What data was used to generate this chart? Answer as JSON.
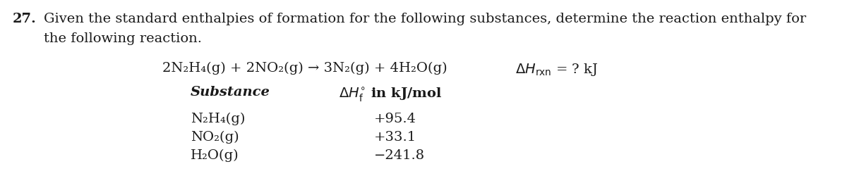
{
  "background_color": "#ffffff",
  "problem_number": "27.",
  "intro_text_line1": "Given the standard enthalpies of formation for the following substances, determine the reaction enthalpy for",
  "intro_text_line2": "the following reaction.",
  "reaction_text": "2N₂H₄(g) + 2NO₂(g) → 3N₂(g) + 4H₂O(g)",
  "delta_hrxn_text": "ΔHₙₓₙ = ? kJ",
  "col_header_substance": "Substance",
  "col_header_delta": "ΔH °  in kJ/mol",
  "col_header_f": "f",
  "substances": [
    "N₂H₄(g)",
    "NO₂(g)",
    "H₂O(g)"
  ],
  "values": [
    "+95.4",
    "+33.1",
    "−241.8"
  ],
  "font_size": 13.0,
  "text_color": "#1a1a1a"
}
